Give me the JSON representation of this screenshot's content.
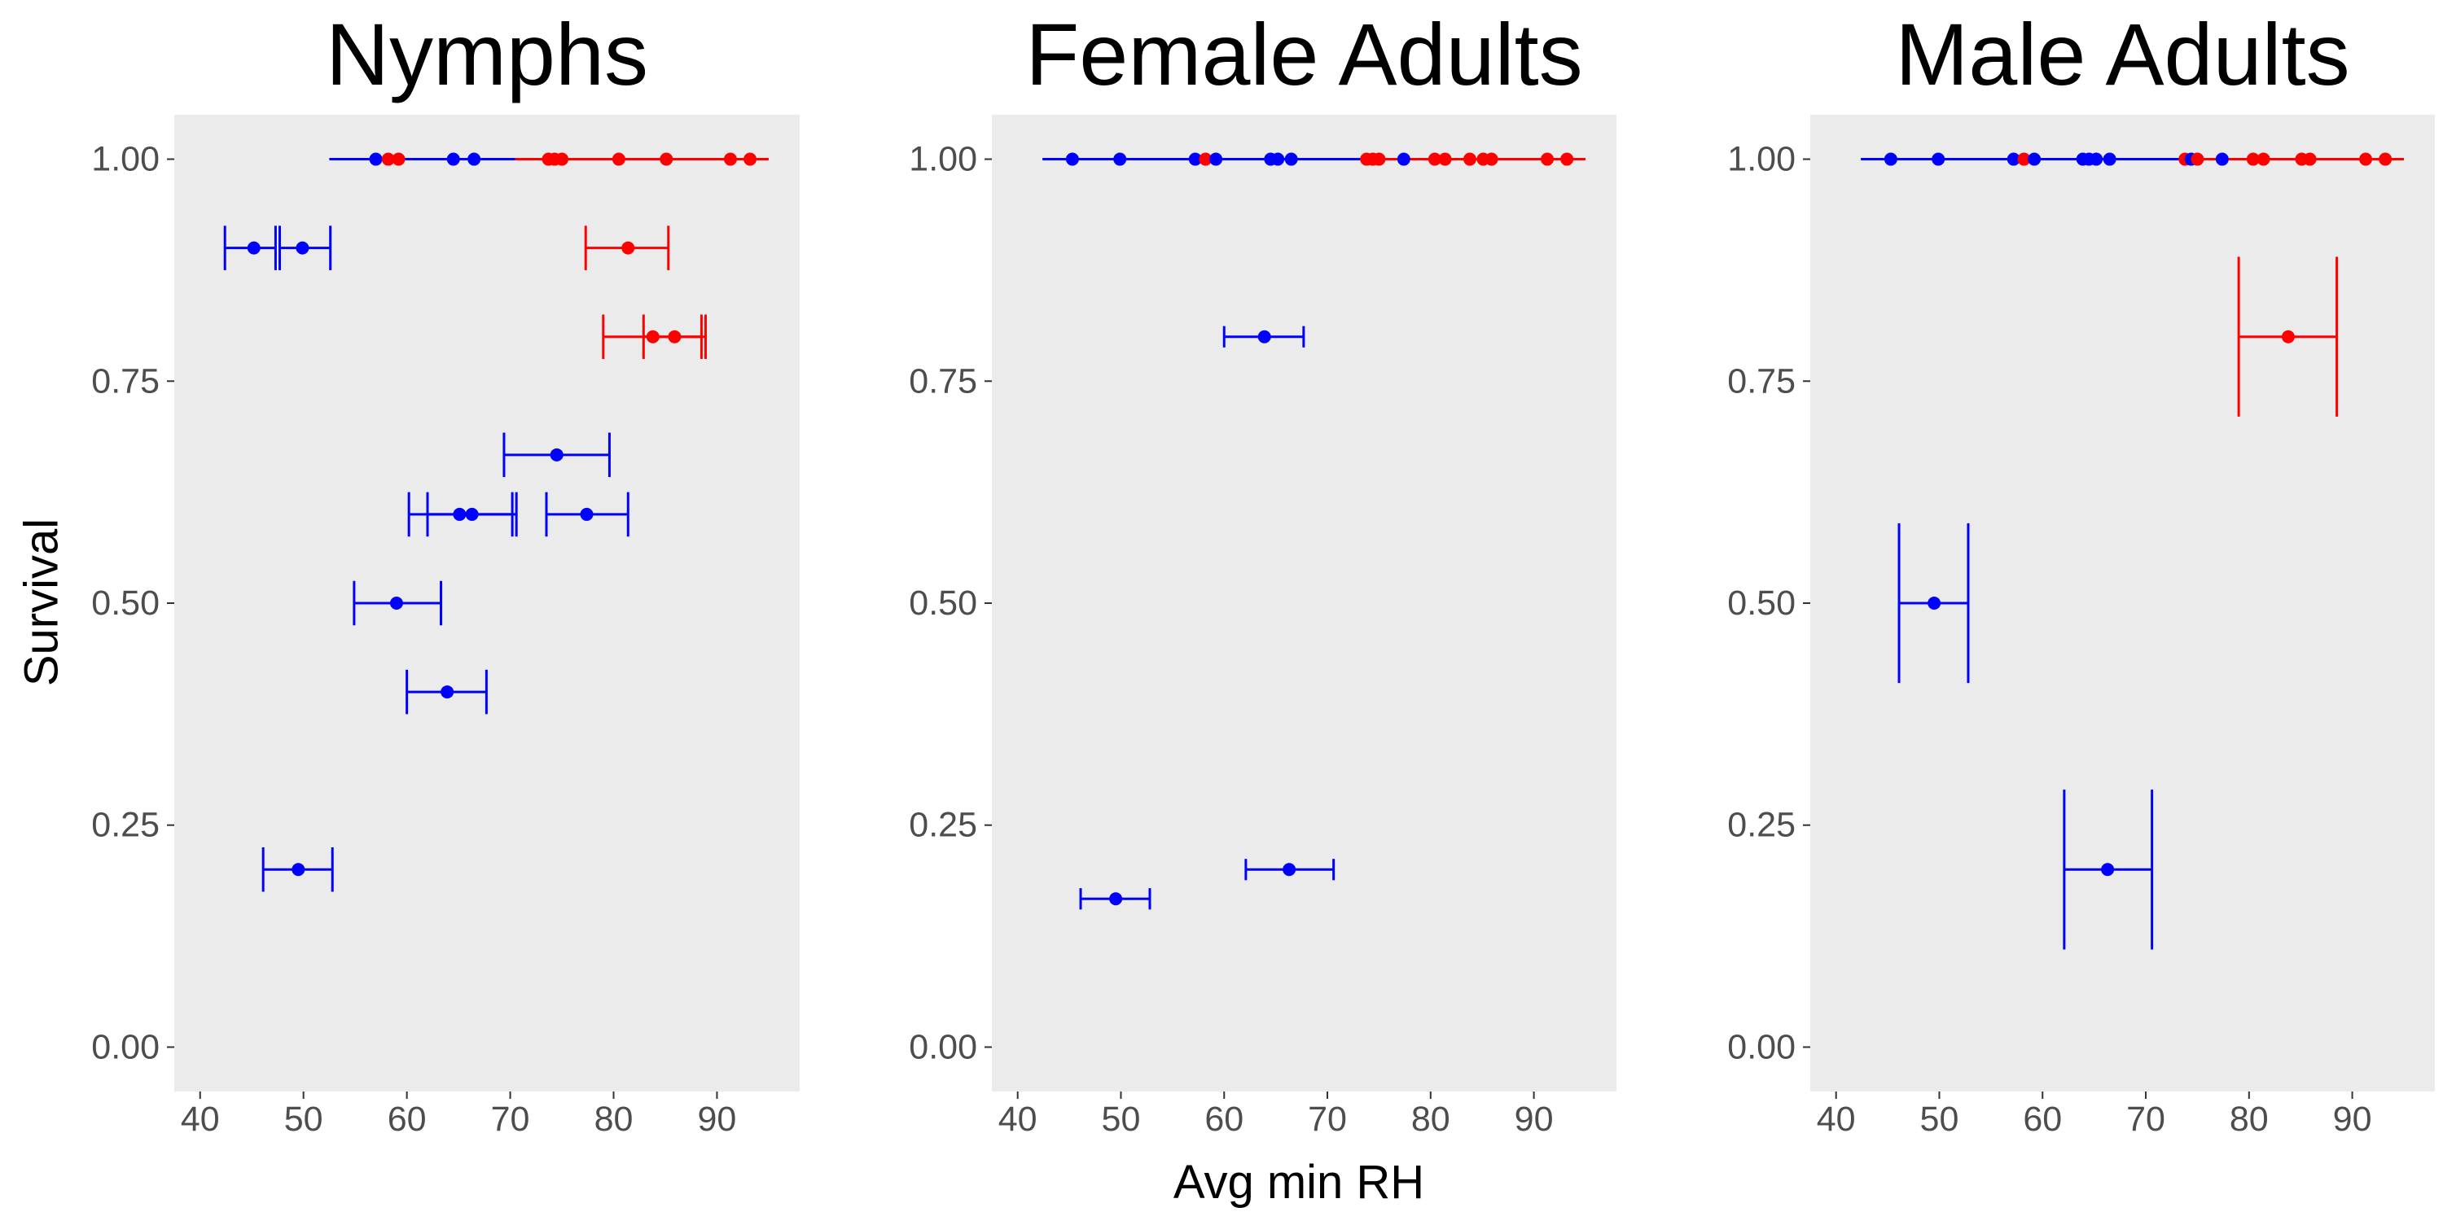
{
  "chart_data": {
    "type": "scatter",
    "xlabel": "Avg min RH",
    "ylabel": "Survival",
    "xlim": [
      37.5,
      98
    ],
    "ylim": [
      -0.05,
      1.05
    ],
    "x_ticks": [
      "40",
      "50",
      "60",
      "70",
      "80",
      "90"
    ],
    "x_tick_values": [
      40,
      50,
      60,
      70,
      80,
      90
    ],
    "y_ticks": [
      "0.00",
      "0.25",
      "0.50",
      "0.75",
      "1.00"
    ],
    "y_tick_values": [
      0,
      0.25,
      0.5,
      0.75,
      1.0
    ],
    "grid": false,
    "background": "#ebebeb",
    "colors": {
      "blue": "#0000ff",
      "red": "#ff0000"
    },
    "panels": [
      {
        "title": "Nymphs",
        "points": [
          {
            "x": 57.0,
            "y": 1.0,
            "color": "blue"
          },
          {
            "x": 58.2,
            "y": 1.0,
            "color": "red"
          },
          {
            "x": 59.2,
            "y": 1.0,
            "color": "red"
          },
          {
            "x": 64.5,
            "y": 1.0,
            "color": "blue"
          },
          {
            "x": 66.5,
            "y": 1.0,
            "color": "blue"
          },
          {
            "x": 73.7,
            "y": 1.0,
            "color": "red"
          },
          {
            "x": 74.3,
            "y": 1.0,
            "color": "red"
          },
          {
            "x": 75.0,
            "y": 1.0,
            "color": "red"
          },
          {
            "x": 80.5,
            "y": 1.0,
            "color": "red"
          },
          {
            "x": 85.1,
            "y": 1.0,
            "color": "red"
          },
          {
            "x": 91.3,
            "y": 1.0,
            "color": "red"
          },
          {
            "x": 93.2,
            "y": 1.0,
            "color": "red"
          }
        ],
        "ranges_y1": [
          {
            "min": 52.5,
            "max": 70.5,
            "color": "blue"
          },
          {
            "min": 70.5,
            "max": 95.0,
            "color": "red"
          }
        ],
        "errorbars": [
          {
            "x": 45.2,
            "y": 0.9,
            "xmin": 42.4,
            "xmax": 47.3,
            "color": "blue",
            "cap": 0.025
          },
          {
            "x": 49.9,
            "y": 0.9,
            "xmin": 47.7,
            "xmax": 52.6,
            "color": "blue",
            "cap": 0.025
          },
          {
            "x": 81.4,
            "y": 0.9,
            "xmin": 77.3,
            "xmax": 85.3,
            "color": "red",
            "cap": 0.025
          },
          {
            "x": 83.8,
            "y": 0.8,
            "xmin": 79.0,
            "xmax": 88.5,
            "color": "red",
            "cap": 0.025
          },
          {
            "x": 85.9,
            "y": 0.8,
            "xmin": 82.9,
            "xmax": 88.9,
            "color": "red",
            "cap": 0.025
          },
          {
            "x": 74.5,
            "y": 0.667,
            "xmin": 69.4,
            "xmax": 79.6,
            "color": "blue",
            "cap": 0.025
          },
          {
            "x": 65.1,
            "y": 0.6,
            "xmin": 60.2,
            "xmax": 70.2,
            "color": "blue",
            "cap": 0.025
          },
          {
            "x": 66.3,
            "y": 0.6,
            "xmin": 62.0,
            "xmax": 70.6,
            "color": "blue",
            "cap": 0.025
          },
          {
            "x": 77.4,
            "y": 0.6,
            "xmin": 73.5,
            "xmax": 81.4,
            "color": "blue",
            "cap": 0.025
          },
          {
            "x": 59.0,
            "y": 0.5,
            "xmin": 54.9,
            "xmax": 63.3,
            "color": "blue",
            "cap": 0.025
          },
          {
            "x": 63.9,
            "y": 0.4,
            "xmin": 60.0,
            "xmax": 67.7,
            "color": "blue",
            "cap": 0.025
          },
          {
            "x": 49.5,
            "y": 0.2,
            "xmin": 46.1,
            "xmax": 52.8,
            "color": "blue",
            "cap": 0.025
          }
        ]
      },
      {
        "title": "Female Adults",
        "points": [
          {
            "x": 45.3,
            "y": 1.0,
            "color": "blue"
          },
          {
            "x": 49.9,
            "y": 1.0,
            "color": "blue"
          },
          {
            "x": 57.2,
            "y": 1.0,
            "color": "blue"
          },
          {
            "x": 58.2,
            "y": 1.0,
            "color": "red"
          },
          {
            "x": 59.2,
            "y": 1.0,
            "color": "blue"
          },
          {
            "x": 64.5,
            "y": 1.0,
            "color": "blue"
          },
          {
            "x": 65.2,
            "y": 1.0,
            "color": "blue"
          },
          {
            "x": 66.5,
            "y": 1.0,
            "color": "blue"
          },
          {
            "x": 73.8,
            "y": 1.0,
            "color": "red"
          },
          {
            "x": 74.4,
            "y": 1.0,
            "color": "red"
          },
          {
            "x": 75.0,
            "y": 1.0,
            "color": "red"
          },
          {
            "x": 77.4,
            "y": 1.0,
            "color": "blue"
          },
          {
            "x": 80.4,
            "y": 1.0,
            "color": "red"
          },
          {
            "x": 81.4,
            "y": 1.0,
            "color": "red"
          },
          {
            "x": 83.8,
            "y": 1.0,
            "color": "red"
          },
          {
            "x": 85.1,
            "y": 1.0,
            "color": "red"
          },
          {
            "x": 85.9,
            "y": 1.0,
            "color": "red"
          },
          {
            "x": 91.3,
            "y": 1.0,
            "color": "red"
          },
          {
            "x": 93.2,
            "y": 1.0,
            "color": "red"
          }
        ],
        "ranges_y1": [
          {
            "min": 42.4,
            "max": 77.6,
            "color": "blue"
          },
          {
            "min": 73.5,
            "max": 95.0,
            "color": "red"
          }
        ],
        "errorbars": [
          {
            "x": 63.9,
            "y": 0.8,
            "xmin": 60.0,
            "xmax": 67.7,
            "color": "blue",
            "cap": 0.012
          },
          {
            "x": 66.3,
            "y": 0.2,
            "xmin": 62.1,
            "xmax": 70.6,
            "color": "blue",
            "cap": 0.012
          },
          {
            "x": 49.5,
            "y": 0.167,
            "xmin": 46.1,
            "xmax": 52.8,
            "color": "blue",
            "cap": 0.012
          }
        ]
      },
      {
        "title": "Male Adults",
        "points": [
          {
            "x": 45.3,
            "y": 1.0,
            "color": "blue"
          },
          {
            "x": 49.9,
            "y": 1.0,
            "color": "blue"
          },
          {
            "x": 57.2,
            "y": 1.0,
            "color": "blue"
          },
          {
            "x": 58.2,
            "y": 1.0,
            "color": "red"
          },
          {
            "x": 59.2,
            "y": 1.0,
            "color": "blue"
          },
          {
            "x": 63.9,
            "y": 1.0,
            "color": "blue"
          },
          {
            "x": 64.5,
            "y": 1.0,
            "color": "blue"
          },
          {
            "x": 65.2,
            "y": 1.0,
            "color": "blue"
          },
          {
            "x": 66.5,
            "y": 1.0,
            "color": "blue"
          },
          {
            "x": 73.8,
            "y": 1.0,
            "color": "red"
          },
          {
            "x": 74.4,
            "y": 1.0,
            "color": "blue"
          },
          {
            "x": 75.0,
            "y": 1.0,
            "color": "red"
          },
          {
            "x": 77.4,
            "y": 1.0,
            "color": "blue"
          },
          {
            "x": 80.4,
            "y": 1.0,
            "color": "red"
          },
          {
            "x": 81.4,
            "y": 1.0,
            "color": "red"
          },
          {
            "x": 85.1,
            "y": 1.0,
            "color": "red"
          },
          {
            "x": 85.9,
            "y": 1.0,
            "color": "red"
          },
          {
            "x": 91.3,
            "y": 1.0,
            "color": "red"
          },
          {
            "x": 93.2,
            "y": 1.0,
            "color": "red"
          }
        ],
        "ranges_y1": [
          {
            "min": 42.4,
            "max": 77.6,
            "color": "blue"
          },
          {
            "min": 73.5,
            "max": 95.0,
            "color": "red"
          }
        ],
        "errorbars": [
          {
            "x": 83.8,
            "y": 0.8,
            "xmin": 79.0,
            "xmax": 88.5,
            "color": "red",
            "cap": 0.09
          },
          {
            "x": 49.5,
            "y": 0.5,
            "xmin": 46.1,
            "xmax": 52.8,
            "color": "blue",
            "cap": 0.09
          },
          {
            "x": 66.3,
            "y": 0.2,
            "xmin": 62.1,
            "xmax": 70.6,
            "color": "blue",
            "cap": 0.09
          }
        ]
      }
    ]
  }
}
